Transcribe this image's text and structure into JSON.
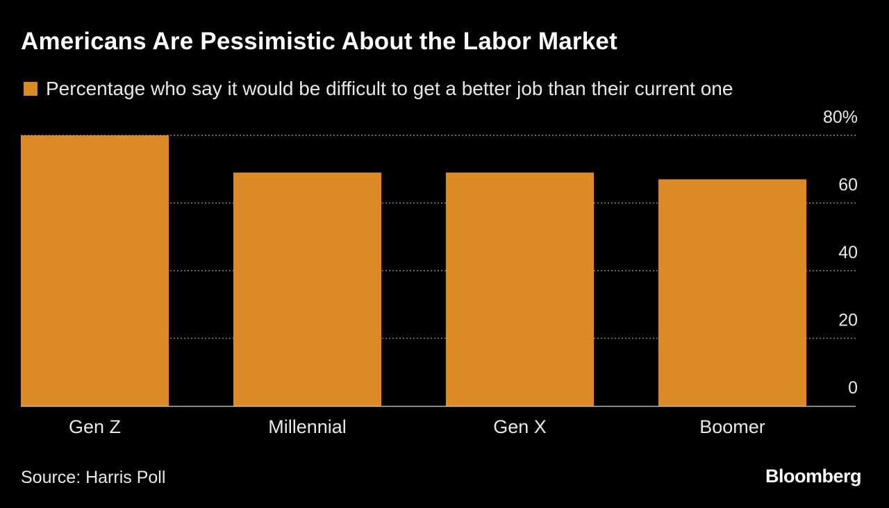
{
  "title": "Americans Are Pessimistic About the Labor Market",
  "source": "Source: Harris Poll",
  "logo": "Bloomberg",
  "chart_data": {
    "type": "bar",
    "title": "Americans Are Pessimistic About the Labor Market",
    "categories": [
      "Gen Z",
      "Millennial",
      "Gen X",
      "Boomer"
    ],
    "series": [
      {
        "name": "Percentage who say it would be difficult to get a better job than their current one",
        "values": [
          80,
          69,
          69,
          67
        ],
        "color": "#db8a25"
      }
    ],
    "ylim": [
      0,
      80
    ],
    "yticks": [
      0,
      20,
      40,
      60,
      80
    ],
    "ytick_labels": [
      "0",
      "20",
      "40",
      "60",
      "80%"
    ],
    "y_axis_side": "right",
    "grid": true,
    "legend_position": "top-left"
  }
}
